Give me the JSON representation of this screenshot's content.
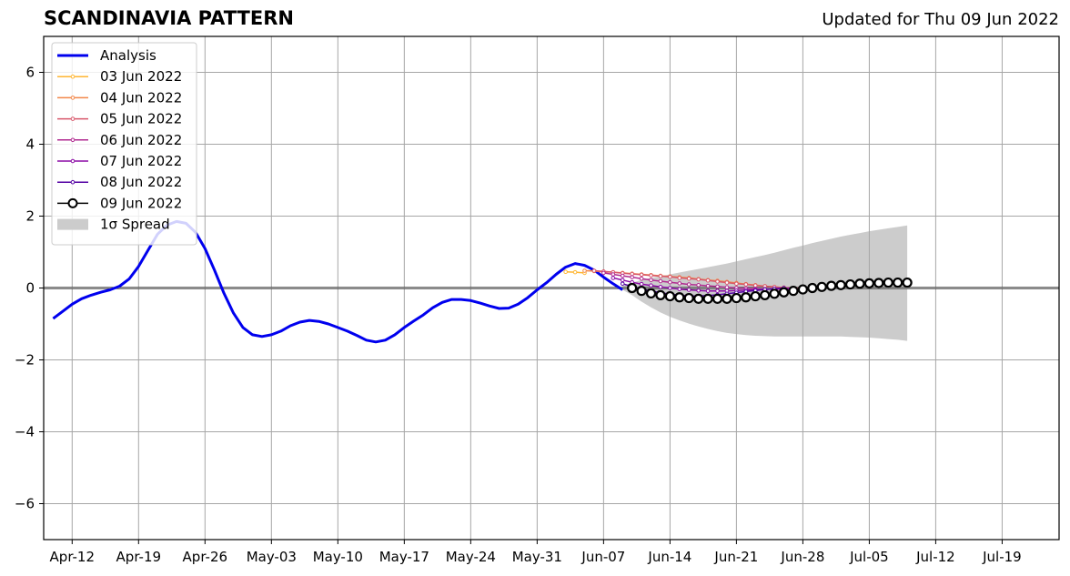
{
  "title": "SCANDINAVIA PATTERN",
  "subtitle": "Updated for Thu 09 Jun 2022",
  "chart_data": {
    "type": "line",
    "title": "SCANDINAVIA PATTERN",
    "xlabel": "",
    "ylabel": "",
    "xlim": [
      "2022-04-09",
      "2022-07-25"
    ],
    "ylim": [
      -7,
      7
    ],
    "grid": true,
    "legend_position": "top-left",
    "x_ticks": [
      "Apr-12",
      "Apr-19",
      "Apr-26",
      "May-03",
      "May-10",
      "May-17",
      "May-24",
      "May-31",
      "Jun-07",
      "Jun-14",
      "Jun-21",
      "Jun-28",
      "Jul-05",
      "Jul-12",
      "Jul-19"
    ],
    "x_tick_dates": [
      "2022-04-12",
      "2022-04-19",
      "2022-04-26",
      "2022-05-03",
      "2022-05-10",
      "2022-05-17",
      "2022-05-24",
      "2022-05-31",
      "2022-06-07",
      "2022-06-14",
      "2022-06-21",
      "2022-06-28",
      "2022-07-05",
      "2022-07-12",
      "2022-07-19"
    ],
    "y_ticks": [
      -6,
      -4,
      -2,
      0,
      2,
      4,
      6
    ],
    "y_tick_labels": [
      "−6",
      "−4",
      "−2",
      "0",
      "2",
      "4",
      "6"
    ],
    "series": [
      {
        "name": "Analysis",
        "color": "#0000ee",
        "style": "thick-line",
        "start_date": "2022-04-10",
        "values": [
          -0.85,
          -0.65,
          -0.45,
          -0.3,
          -0.2,
          -0.12,
          -0.05,
          0.05,
          0.25,
          0.6,
          1.05,
          1.5,
          1.75,
          1.85,
          1.8,
          1.55,
          1.1,
          0.5,
          -0.15,
          -0.7,
          -1.1,
          -1.3,
          -1.35,
          -1.3,
          -1.2,
          -1.05,
          -0.95,
          -0.9,
          -0.93,
          -1.0,
          -1.1,
          -1.2,
          -1.32,
          -1.45,
          -1.5,
          -1.45,
          -1.3,
          -1.1,
          -0.92,
          -0.75,
          -0.55,
          -0.4,
          -0.32,
          -0.32,
          -0.35,
          -0.42,
          -0.5,
          -0.57,
          -0.56,
          -0.45,
          -0.27,
          -0.05,
          0.15,
          0.38,
          0.58,
          0.68,
          0.63,
          0.5,
          0.3,
          0.12,
          -0.05
        ]
      },
      {
        "name": "03 Jun 2022",
        "color": "#ffb632",
        "style": "small-markers",
        "start_date": "2022-06-03",
        "values": [
          0.45,
          0.44,
          0.42
        ]
      },
      {
        "name": "04 Jun 2022",
        "color": "#f38749",
        "style": "small-markers",
        "start_date": "2022-06-05",
        "values": [
          0.48,
          0.47,
          0.45,
          0.44,
          0.42,
          0.4,
          0.38,
          0.36,
          0.34,
          0.32,
          0.3,
          0.28,
          0.25,
          0.22,
          0.2,
          0.17,
          0.14,
          0.11,
          0.08,
          0.05,
          0.03,
          0.01,
          0.0,
          -0.01
        ]
      },
      {
        "name": "05 Jun 2022",
        "color": "#d8576b",
        "style": "small-markers",
        "start_date": "2022-06-06",
        "values": [
          0.48,
          0.46,
          0.44,
          0.41,
          0.39,
          0.37,
          0.35,
          0.33,
          0.31,
          0.28,
          0.26,
          0.24,
          0.21,
          0.18,
          0.15,
          0.12,
          0.1,
          0.07,
          0.05,
          0.03,
          0.01,
          -0.01,
          -0.02
        ]
      },
      {
        "name": "06 Jun 2022",
        "color": "#b12a90",
        "style": "small-markers",
        "start_date": "2022-06-07",
        "values": [
          0.42,
          0.38,
          0.34,
          0.3,
          0.26,
          0.22,
          0.19,
          0.16,
          0.13,
          0.1,
          0.08,
          0.06,
          0.04,
          0.02,
          0.0,
          -0.01,
          -0.02,
          -0.03,
          -0.03,
          -0.03,
          -0.02,
          -0.01
        ]
      },
      {
        "name": "07 Jun 2022",
        "color": "#8b0aa5",
        "style": "small-markers",
        "start_date": "2022-06-08",
        "values": [
          0.28,
          0.22,
          0.16,
          0.11,
          0.07,
          0.03,
          0.0,
          -0.03,
          -0.05,
          -0.07,
          -0.08,
          -0.08,
          -0.08,
          -0.07,
          -0.06,
          -0.05,
          -0.04,
          -0.02,
          -0.01,
          0.0
        ]
      },
      {
        "name": "08 Jun 2022",
        "color": "#5402a3",
        "style": "small-markers",
        "start_date": "2022-06-09",
        "values": [
          0.12,
          0.04,
          -0.03,
          -0.08,
          -0.13,
          -0.17,
          -0.2,
          -0.22,
          -0.22,
          -0.21,
          -0.19,
          -0.16,
          -0.13,
          -0.1,
          -0.07,
          -0.04,
          -0.02,
          0.0
        ]
      },
      {
        "name": "09 Jun 2022",
        "color": "#000000",
        "style": "open-circles",
        "start_date": "2022-06-10",
        "values": [
          0.0,
          -0.08,
          -0.15,
          -0.2,
          -0.23,
          -0.26,
          -0.28,
          -0.3,
          -0.3,
          -0.3,
          -0.3,
          -0.28,
          -0.26,
          -0.23,
          -0.2,
          -0.16,
          -0.12,
          -0.08,
          -0.04,
          0.0,
          0.03,
          0.06,
          0.08,
          0.1,
          0.12,
          0.13,
          0.14,
          0.15,
          0.15,
          0.15
        ]
      },
      {
        "name": "1σ Spread",
        "color": "#cccccc",
        "style": "band",
        "start_date": "2022-06-09",
        "upper": [
          0.05,
          0.15,
          0.22,
          0.28,
          0.33,
          0.38,
          0.43,
          0.48,
          0.53,
          0.58,
          0.63,
          0.68,
          0.74,
          0.8,
          0.86,
          0.92,
          0.98,
          1.05,
          1.12,
          1.18,
          1.25,
          1.31,
          1.37,
          1.43,
          1.48,
          1.53,
          1.58,
          1.62,
          1.66,
          1.7,
          1.74
        ],
        "lower": [
          -0.05,
          -0.2,
          -0.38,
          -0.54,
          -0.68,
          -0.8,
          -0.9,
          -0.99,
          -1.07,
          -1.14,
          -1.2,
          -1.25,
          -1.28,
          -1.31,
          -1.33,
          -1.34,
          -1.35,
          -1.35,
          -1.35,
          -1.35,
          -1.35,
          -1.35,
          -1.35,
          -1.35,
          -1.36,
          -1.37,
          -1.38,
          -1.4,
          -1.42,
          -1.44,
          -1.47
        ]
      }
    ],
    "legend": [
      "Analysis",
      "03 Jun 2022",
      "04 Jun 2022",
      "05 Jun 2022",
      "06 Jun 2022",
      "07 Jun 2022",
      "08 Jun 2022",
      "09 Jun 2022",
      "1σ Spread"
    ]
  }
}
